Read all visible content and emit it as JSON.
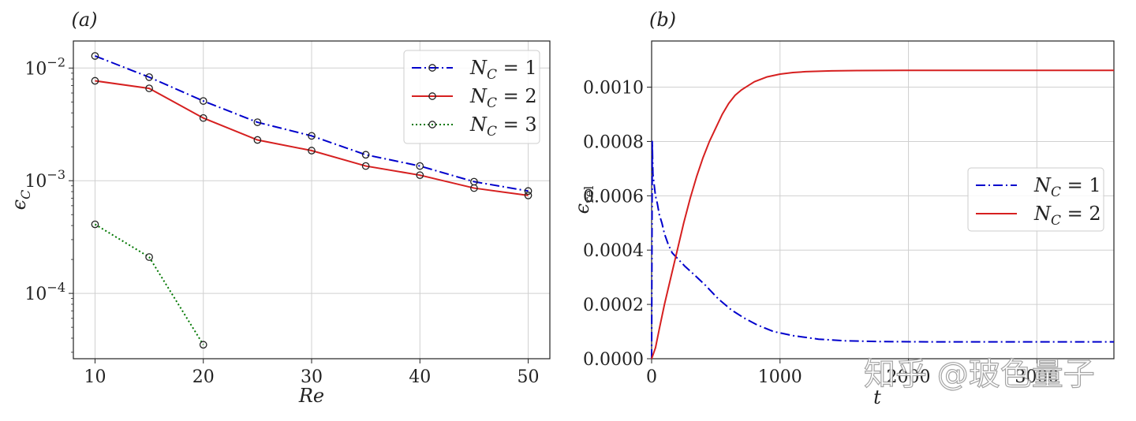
{
  "chart_data": [
    {
      "type": "line",
      "panel_label": "(a)",
      "xlabel": "Re",
      "ylabel": "ϵ_C",
      "yscale": "log",
      "xlim": [
        8,
        52
      ],
      "ylim_log10": [
        -4.58,
        -1.76
      ],
      "xticks": [
        10,
        20,
        30,
        40,
        50
      ],
      "yticks": [
        {
          "exp": -2,
          "label": "10−2"
        },
        {
          "exp": -3,
          "label": "10−3"
        },
        {
          "exp": -4,
          "label": "10−4"
        }
      ],
      "grid": true,
      "legend_position": "top-right",
      "series": [
        {
          "name": "N_C = 1",
          "color": "#0000cc",
          "style": "dashdot",
          "marker": "circle",
          "x": [
            10,
            15,
            20,
            25,
            30,
            35,
            40,
            45,
            50
          ],
          "y": [
            0.0128,
            0.0083,
            0.0051,
            0.0033,
            0.0025,
            0.0017,
            0.00135,
            0.00098,
            0.00081
          ]
        },
        {
          "name": "N_C = 2",
          "color": "#d62020",
          "style": "solid",
          "marker": "circle",
          "x": [
            10,
            15,
            20,
            25,
            30,
            35,
            40,
            45,
            50
          ],
          "y": [
            0.0077,
            0.0066,
            0.0036,
            0.0023,
            0.00185,
            0.00135,
            0.00112,
            0.00086,
            0.00074
          ]
        },
        {
          "name": "N_C = 3",
          "color": "#007700",
          "style": "dotted",
          "marker": "circle",
          "x": [
            10,
            15,
            20
          ],
          "y": [
            0.00041,
            0.00021,
            3.5e-05
          ]
        }
      ]
    },
    {
      "type": "line",
      "panel_label": "(b)",
      "xlabel": "t",
      "ylabel": "ϵ_rel",
      "xlim": [
        0,
        3600
      ],
      "ylim": [
        0,
        0.00117
      ],
      "xticks": [
        {
          "v": 0,
          "label": "0"
        },
        {
          "v": 1000,
          "label": "1000"
        },
        {
          "v": 2000,
          "label": "2000"
        },
        {
          "v": 3000,
          "label": "3000"
        }
      ],
      "yticks": [
        {
          "v": 0,
          "label": "0.0000"
        },
        {
          "v": 0.0002,
          "label": "0.0002"
        },
        {
          "v": 0.0004,
          "label": "0.0004"
        },
        {
          "v": 0.0006,
          "label": "0.0006"
        },
        {
          "v": 0.0008,
          "label": "0.0008"
        },
        {
          "v": 0.001,
          "label": "0.0010"
        }
      ],
      "grid": true,
      "legend_position": "center-right",
      "series": [
        {
          "name": "N_C = 1",
          "color": "#0000cc",
          "style": "dashdot",
          "x": [
            0,
            5,
            10,
            20,
            30,
            45,
            60,
            80,
            100,
            130,
            160,
            200,
            260,
            330,
            420,
            520,
            620,
            720,
            820,
            950,
            1100,
            1300,
            1500,
            1800,
            2200,
            2700,
            3200,
            3600
          ],
          "y": [
            0.0,
            0.0008,
            0.00068,
            0.00064,
            0.0006,
            0.00057,
            0.00053,
            0.0005,
            0.00046,
            0.00042,
            0.00039,
            0.00037,
            0.00034,
            0.00031,
            0.00027,
            0.00022,
            0.00018,
            0.00015,
            0.000125,
            0.0001,
            8.5e-05,
            7.2e-05,
            6.6e-05,
            6.3e-05,
            6.2e-05,
            6.2e-05,
            6.2e-05,
            6.2e-05
          ]
        },
        {
          "name": "N_C = 2",
          "color": "#d62020",
          "style": "solid",
          "x": [
            0,
            30,
            60,
            100,
            150,
            200,
            250,
            300,
            350,
            400,
            450,
            500,
            550,
            600,
            650,
            700,
            750,
            800,
            900,
            1000,
            1100,
            1200,
            1400,
            1600,
            2000,
            2500,
            3000,
            3600
          ],
          "y": [
            0.0,
            4e-05,
            0.00011,
            0.0002,
            0.0003,
            0.0004,
            0.0005,
            0.00059,
            0.00067,
            0.00074,
            0.0008,
            0.00085,
            0.0009,
            0.00094,
            0.00097,
            0.00099,
            0.001005,
            0.00102,
            0.001038,
            0.001048,
            0.001054,
            0.001057,
            0.00106,
            0.001061,
            0.001062,
            0.001062,
            0.001062,
            0.001062
          ]
        }
      ]
    }
  ],
  "watermark": "知乎 @玻色量子"
}
